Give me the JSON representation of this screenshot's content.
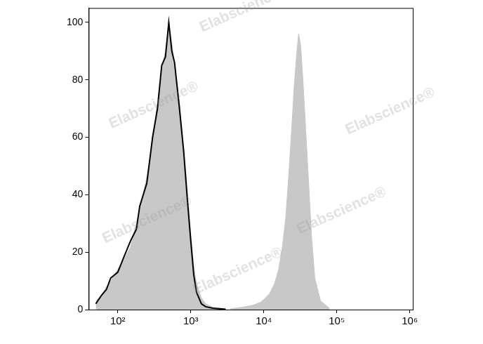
{
  "chart_data": {
    "type": "line",
    "watermark": "Elabscience®",
    "log": "x",
    "grid": false,
    "xlim": [
      40,
      1100000
    ],
    "xticks": [
      {
        "value": 100,
        "label": "10²"
      },
      {
        "value": 1000,
        "label": "10³"
      },
      {
        "value": 10000,
        "label": "10⁴"
      },
      {
        "value": 100000,
        "label": "10⁵"
      },
      {
        "value": 1000000,
        "label": "10⁶"
      }
    ],
    "ylim": [
      0,
      105
    ],
    "yticks": [
      0,
      20,
      40,
      60,
      80,
      100
    ],
    "series": [
      {
        "type": "area",
        "color": "#c8c8c8",
        "x": [
          50,
          60,
          70,
          80,
          100,
          120,
          150,
          180,
          200,
          250,
          300,
          350,
          400,
          450,
          500,
          550,
          600,
          700,
          800,
          900,
          1000,
          1100,
          1200,
          1400,
          1600,
          2000,
          3000
        ],
        "values": [
          3,
          5,
          8,
          10,
          14,
          17,
          22,
          30,
          35,
          46,
          58,
          72,
          83,
          90,
          99,
          93,
          85,
          72,
          56,
          41,
          26,
          15,
          9,
          4,
          2,
          0.8,
          0.2
        ]
      },
      {
        "type": "area",
        "color": "#c8c8c8",
        "x": [
          3500,
          5000,
          7000,
          9000,
          10000,
          12000,
          14000,
          16000,
          18000,
          20000,
          22000,
          24000,
          26000,
          28000,
          30000,
          32000,
          34000,
          36000,
          40000,
          45000,
          50000,
          60000,
          80000
        ],
        "values": [
          0.3,
          0.8,
          1.5,
          2.5,
          3.5,
          5.5,
          9,
          14,
          22,
          32,
          47,
          62,
          77,
          88,
          96,
          92,
          82,
          71,
          50,
          26,
          11,
          3,
          0.4
        ]
      },
      {
        "type": "line",
        "color": "#000000",
        "x": [
          50,
          60,
          70,
          80,
          100,
          120,
          150,
          180,
          200,
          250,
          300,
          350,
          400,
          450,
          500,
          550,
          600,
          700,
          800,
          900,
          1000,
          1100,
          1200,
          1400,
          1600,
          2000,
          3000
        ],
        "values": [
          2,
          5,
          7,
          11,
          13,
          18,
          24,
          28,
          36,
          44,
          60,
          70,
          85,
          88,
          100,
          90,
          86,
          70,
          55,
          38,
          24,
          12,
          6,
          2,
          1,
          0.5,
          0.1
        ]
      }
    ]
  }
}
